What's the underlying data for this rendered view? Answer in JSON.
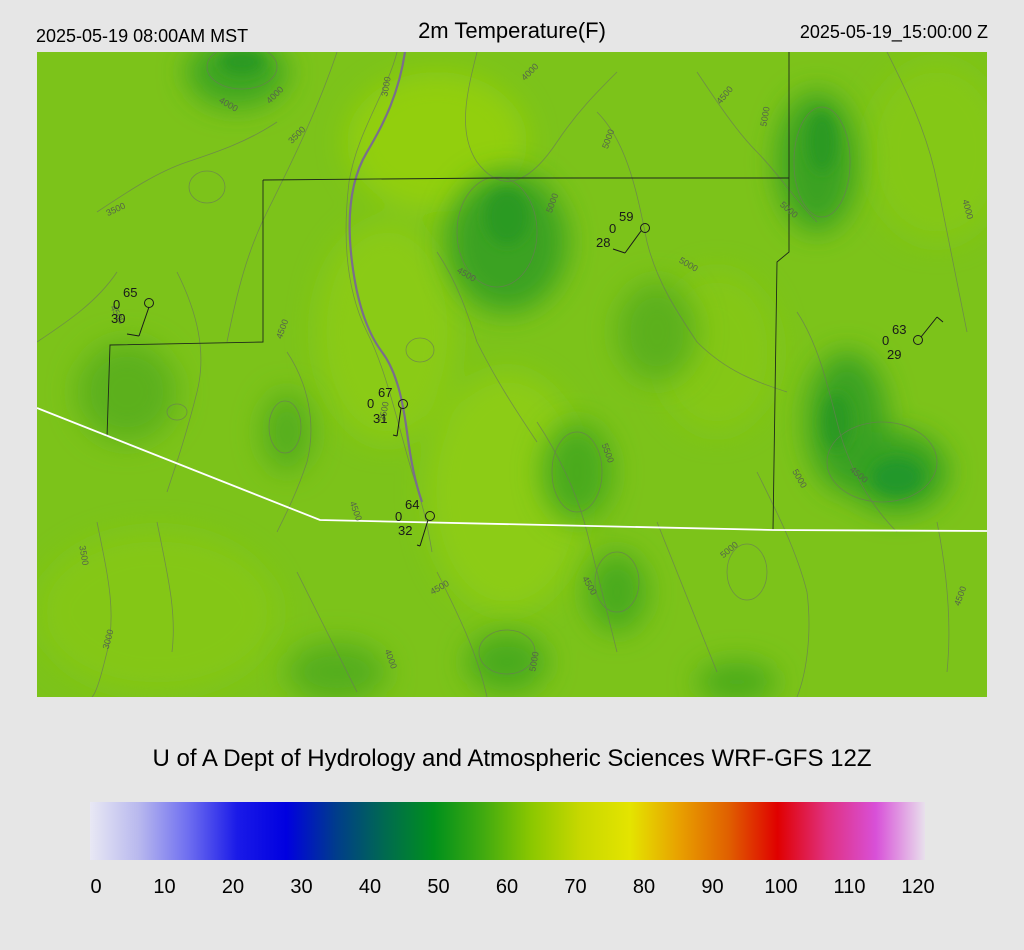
{
  "header": {
    "valid_local": "2025-05-19 08:00AM MST",
    "title": "2m Temperature(F)",
    "valid_utc": "2025-05-19_15:00:00 Z"
  },
  "footer": {
    "credit": "U of A Dept of Hydrology and Atmospheric Sciences WRF-GFS 12Z"
  },
  "colorbar": {
    "ticks": [
      "0",
      "10",
      "20",
      "30",
      "40",
      "50",
      "60",
      "70",
      "80",
      "90",
      "100",
      "110",
      "120"
    ],
    "stops": [
      "#e8e8f4",
      "#b8b8ee",
      "#6e6ef0",
      "#1a1ae8",
      "#0000e0",
      "#003c8c",
      "#006a50",
      "#00901c",
      "#40aa10",
      "#8cc800",
      "#c8d800",
      "#e4e400",
      "#e8a000",
      "#e06000",
      "#e00000",
      "#e03080",
      "#d850d8",
      "#e8e0ec"
    ]
  },
  "map": {
    "stations": [
      {
        "temp": "65",
        "wind": "0",
        "dew": "30"
      },
      {
        "temp": "59",
        "wind": "0",
        "dew": "28"
      },
      {
        "temp": "63",
        "wind": "0",
        "dew": "29"
      },
      {
        "temp": "67",
        "wind": "0",
        "dew": "31"
      },
      {
        "temp": "64",
        "wind": "0",
        "dew": "32"
      }
    ],
    "contour_labels": [
      "4000",
      "4000",
      "3000",
      "4000",
      "4500",
      "5000",
      "3500",
      "5000",
      "3500",
      "4500",
      "5000",
      "5000",
      "4000",
      "4500",
      "3500",
      "4500",
      "5000",
      "5500",
      "4500",
      "4500",
      "5000",
      "4500",
      "3500",
      "3000",
      "4000",
      "4500",
      "5000",
      "5000",
      "4500"
    ]
  }
}
